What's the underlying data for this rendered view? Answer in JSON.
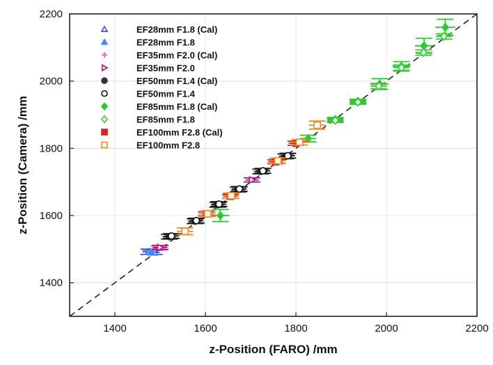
{
  "chart_data": {
    "type": "scatter",
    "xlabel": "z-Position (FARO) /mm",
    "ylabel": "z-Position (Camera) /mm",
    "xlim": [
      1300,
      2200
    ],
    "ylim": [
      1300,
      2200
    ],
    "xticks": [
      1400,
      1600,
      1800,
      2000,
      2200
    ],
    "yticks": [
      1400,
      1600,
      1800,
      2000,
      2200
    ],
    "grid": true,
    "legend_position": "top-left",
    "reference_line": {
      "style": "dashed",
      "color": "#222222",
      "from": [
        1300,
        1300
      ],
      "to": [
        2200,
        2200
      ]
    },
    "series": [
      {
        "name": "EF28mm F1.8 (Cal)",
        "marker": "triangle-open",
        "color": "#3a55d8",
        "points": [
          {
            "x": 1475,
            "y": 1492,
            "ex": 14,
            "ey": 8
          },
          {
            "x": 1487,
            "y": 1490,
            "ex": 12,
            "ey": 6
          }
        ]
      },
      {
        "name": "EF28mm F1.8",
        "marker": "triangle",
        "color": "#3f86ff",
        "points": [
          {
            "x": 1480,
            "y": 1490,
            "ex": 12,
            "ey": 6
          }
        ]
      },
      {
        "name": "EF35mm F2.0 (Cal)",
        "marker": "plus",
        "color": "#ff66d0",
        "points": [
          {
            "x": 1497,
            "y": 1503,
            "ex": 14,
            "ey": 6
          }
        ]
      },
      {
        "name": "EF35mm F2.0",
        "marker": "triangle-right-open",
        "color": "#b0167a",
        "points": [
          {
            "x": 1500,
            "y": 1505,
            "ex": 16,
            "ey": 6
          },
          {
            "x": 1703,
            "y": 1706,
            "ex": 14,
            "ey": 6
          }
        ]
      },
      {
        "name": "EF50mm F1.4 (Cal)",
        "marker": "circle",
        "color": "#333333",
        "points": [
          {
            "x": 1520,
            "y": 1537,
            "ex": 15,
            "ey": 7
          },
          {
            "x": 1577,
            "y": 1583,
            "ex": 15,
            "ey": 7
          },
          {
            "x": 1627,
            "y": 1632,
            "ex": 15,
            "ey": 7
          },
          {
            "x": 1672,
            "y": 1677,
            "ex": 15,
            "ey": 7
          },
          {
            "x": 1722,
            "y": 1731,
            "ex": 15,
            "ey": 7
          },
          {
            "x": 1777,
            "y": 1776,
            "ex": 15,
            "ey": 7
          }
        ]
      },
      {
        "name": "EF50mm F1.4",
        "marker": "circle-open",
        "color": "#111111",
        "points": [
          {
            "x": 1525,
            "y": 1539,
            "ex": 16,
            "ey": 7
          },
          {
            "x": 1580,
            "y": 1585,
            "ex": 16,
            "ey": 7
          },
          {
            "x": 1630,
            "y": 1634,
            "ex": 16,
            "ey": 7
          },
          {
            "x": 1675,
            "y": 1679,
            "ex": 16,
            "ey": 7
          },
          {
            "x": 1727,
            "y": 1733,
            "ex": 16,
            "ey": 7
          },
          {
            "x": 1782,
            "y": 1778,
            "ex": 16,
            "ey": 7
          }
        ]
      },
      {
        "name": "EF85mm F1.8 (Cal)",
        "marker": "diamond",
        "color": "#2cc82c",
        "points": [
          {
            "x": 1633,
            "y": 1600,
            "ex": 20,
            "ey": 18
          },
          {
            "x": 1827,
            "y": 1829,
            "ex": 18,
            "ey": 10
          },
          {
            "x": 1887,
            "y": 1886,
            "ex": 18,
            "ey": 6
          },
          {
            "x": 1937,
            "y": 1940,
            "ex": 18,
            "ey": 6
          },
          {
            "x": 1985,
            "y": 1991,
            "ex": 20,
            "ey": 16
          },
          {
            "x": 2033,
            "y": 2044,
            "ex": 20,
            "ey": 14
          },
          {
            "x": 2083,
            "y": 2105,
            "ex": 20,
            "ey": 22
          },
          {
            "x": 2130,
            "y": 2160,
            "ex": 22,
            "ey": 24
          }
        ]
      },
      {
        "name": "EF85mm F1.8",
        "marker": "diamond-open",
        "color": "#33cc33",
        "points": [
          {
            "x": 1887,
            "y": 1883,
            "ex": 18,
            "ey": 6
          },
          {
            "x": 1937,
            "y": 1937,
            "ex": 18,
            "ey": 6
          },
          {
            "x": 1983,
            "y": 1985,
            "ex": 18,
            "ey": 8
          },
          {
            "x": 2033,
            "y": 2040,
            "ex": 18,
            "ey": 8
          },
          {
            "x": 2082,
            "y": 2085,
            "ex": 18,
            "ey": 8
          },
          {
            "x": 2127,
            "y": 2133,
            "ex": 18,
            "ey": 8
          }
        ]
      },
      {
        "name": "EF100mm F2.8 (Cal)",
        "marker": "square",
        "color": "#dd2222",
        "points": [
          {
            "x": 1602,
            "y": 1605,
            "ex": 16,
            "ey": 6
          },
          {
            "x": 1655,
            "y": 1657,
            "ex": 16,
            "ey": 6
          },
          {
            "x": 1755,
            "y": 1760,
            "ex": 16,
            "ey": 6
          },
          {
            "x": 1800,
            "y": 1815,
            "ex": 16,
            "ey": 6
          }
        ]
      },
      {
        "name": "EF100mm F2.8",
        "marker": "square-open",
        "color": "#f08a24",
        "points": [
          {
            "x": 1555,
            "y": 1553,
            "ex": 18,
            "ey": 10
          },
          {
            "x": 1605,
            "y": 1605,
            "ex": 18,
            "ey": 8
          },
          {
            "x": 1657,
            "y": 1659,
            "ex": 18,
            "ey": 8
          },
          {
            "x": 1760,
            "y": 1763,
            "ex": 18,
            "ey": 8
          },
          {
            "x": 1808,
            "y": 1818,
            "ex": 18,
            "ey": 8
          },
          {
            "x": 1847,
            "y": 1869,
            "ex": 18,
            "ey": 12
          }
        ]
      }
    ]
  }
}
